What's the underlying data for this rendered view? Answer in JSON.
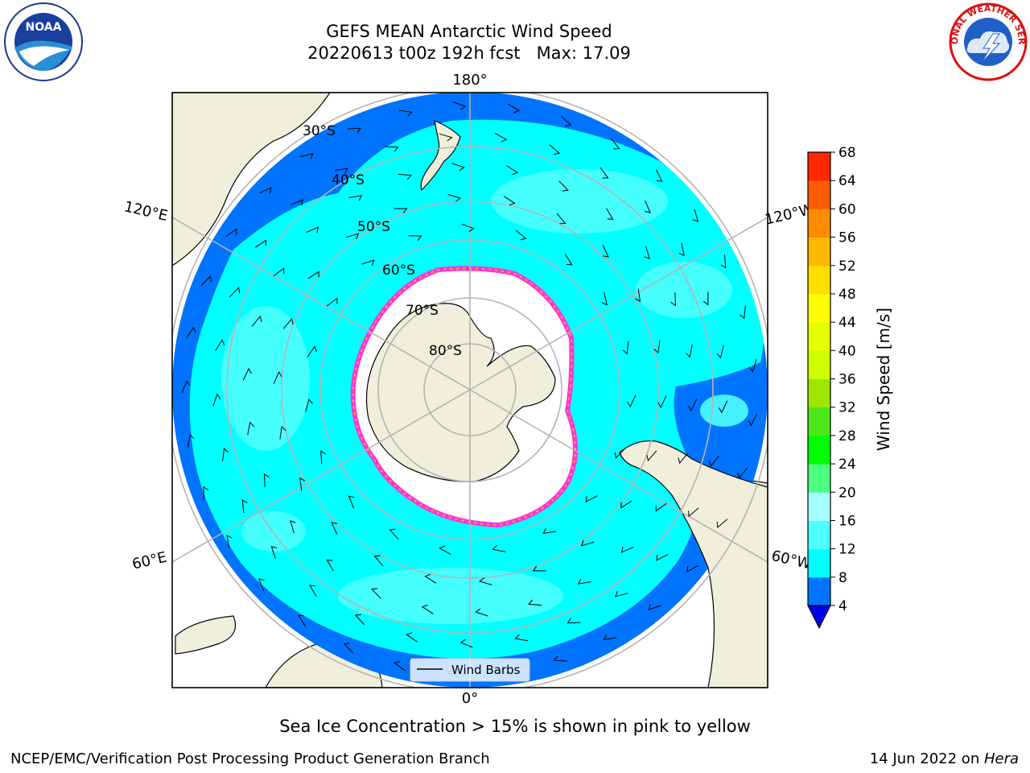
{
  "title": {
    "line1": "GEFS MEAN Antarctic Wind Speed",
    "line2": "20220613 t00z 192h fcst   Max: 17.09"
  },
  "subtitle": "Sea Ice Concentration > 15% is shown in pink to yellow",
  "footer": {
    "left": "NCEP/EMC/Verification Post Processing Product Generation Branch",
    "date": "14 Jun 2022 on ",
    "machine": "Hera"
  },
  "logos": {
    "noaa": "NOAA",
    "nws": "NATIONAL WEATHER SERVICE"
  },
  "map": {
    "projection": "south-polar-stereographic",
    "lon_labels": {
      "top": "180°",
      "bottom": "0°",
      "left_upper": "120°E",
      "left_lower": "60°E",
      "right_upper": "120°W",
      "right_lower": "60°W"
    },
    "lat_labels": [
      "30°S",
      "40°S",
      "50°S",
      "60°S",
      "70°S",
      "80°S"
    ],
    "legend": "Wind Barbs",
    "colors": {
      "land": "#efefdb",
      "grid": "#b4b4b4",
      "sea_ice": "#ffffff"
    }
  },
  "colorbar": {
    "label": "Wind Speed [m/s]",
    "ticks": [
      "4",
      "8",
      "12",
      "16",
      "20",
      "24",
      "28",
      "32",
      "36",
      "40",
      "44",
      "48",
      "52",
      "56",
      "60",
      "64",
      "68"
    ],
    "colors": [
      "#0073ff",
      "#00ffff",
      "#4dffff",
      "#a6ffff",
      "#4dff80",
      "#00ff00",
      "#4de61a",
      "#9ce600",
      "#cdff00",
      "#e6ff00",
      "#ffff00",
      "#ffde00",
      "#ffb900",
      "#ff8c00",
      "#ff5e00",
      "#ff2800"
    ],
    "under_color": "#0000e6"
  }
}
